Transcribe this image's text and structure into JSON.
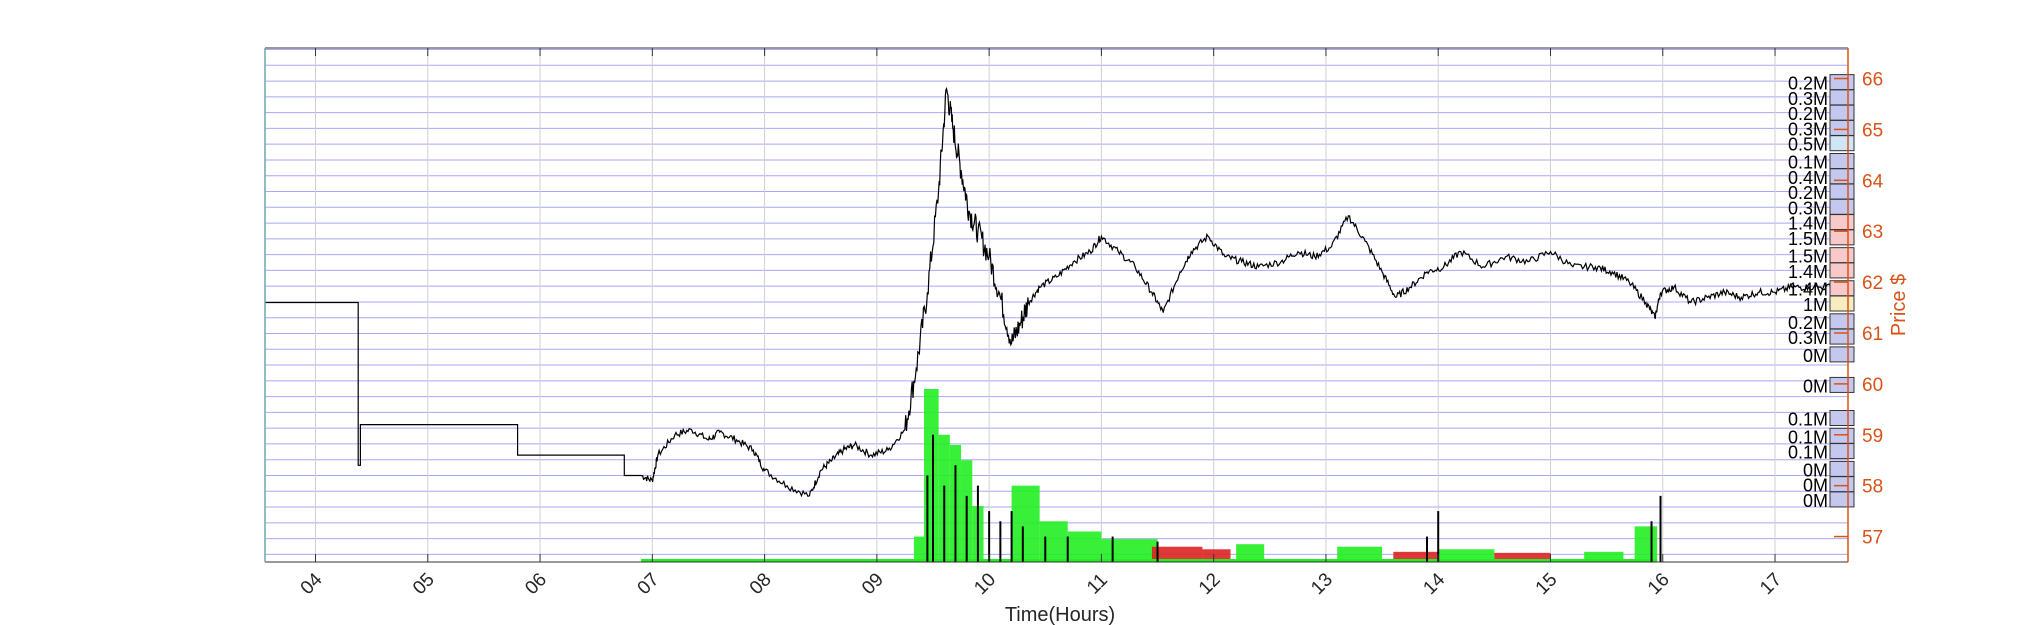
{
  "chart_data": {
    "type": "line",
    "xlabel": "Time(Hours)",
    "ylabel_right": "Price $",
    "xlim": [
      3.55,
      17.65
    ],
    "ylim": [
      56.5,
      66.6
    ],
    "x_ticks": [
      "04",
      "05",
      "06",
      "07",
      "08",
      "09",
      "10",
      "11",
      "12",
      "13",
      "14",
      "15",
      "16",
      "17"
    ],
    "y_ticks": [
      57,
      58,
      59,
      60,
      61,
      62,
      63,
      64,
      65,
      66
    ],
    "grid": true,
    "price_series": {
      "name": "",
      "x": [
        3.55,
        4.38,
        4.38,
        4.4,
        4.4,
        5.8,
        5.8,
        6.75,
        6.75,
        6.9,
        7.0,
        7.05,
        7.2,
        7.35,
        7.5,
        7.6,
        7.75,
        7.9,
        8.0,
        8.2,
        8.4,
        8.5,
        8.6,
        8.7,
        8.8,
        8.95,
        9.1,
        9.25,
        9.35,
        9.45,
        9.55,
        9.62,
        9.68,
        9.75,
        9.82,
        9.9,
        10.0,
        10.1,
        10.2,
        10.28,
        10.35,
        10.45,
        10.6,
        10.75,
        10.9,
        11.0,
        11.15,
        11.3,
        11.45,
        11.55,
        11.7,
        11.8,
        11.95,
        12.1,
        12.25,
        12.4,
        12.6,
        12.75,
        12.9,
        13.05,
        13.2,
        13.35,
        13.5,
        13.62,
        13.75,
        13.9,
        14.05,
        14.2,
        14.4,
        14.6,
        14.8,
        15.0,
        15.2,
        15.4,
        15.55,
        15.7,
        15.85,
        15.93,
        15.98,
        16.1,
        16.25,
        16.4,
        16.55,
        16.7,
        16.85,
        17.0,
        17.15,
        17.3,
        17.55
      ],
      "y": [
        61.6,
        61.6,
        58.4,
        58.4,
        59.2,
        59.2,
        58.6,
        58.6,
        58.2,
        58.2,
        58.1,
        58.6,
        59.0,
        59.1,
        58.9,
        59.05,
        58.9,
        58.7,
        58.3,
        58.0,
        57.8,
        58.3,
        58.5,
        58.7,
        58.8,
        58.6,
        58.7,
        59.1,
        60.3,
        61.8,
        63.8,
        65.8,
        65.0,
        64.2,
        63.4,
        63.0,
        62.5,
        61.7,
        60.8,
        61.2,
        61.6,
        61.9,
        62.1,
        62.4,
        62.6,
        62.9,
        62.6,
        62.3,
        61.8,
        61.4,
        62.2,
        62.6,
        62.9,
        62.5,
        62.4,
        62.3,
        62.4,
        62.6,
        62.5,
        62.7,
        63.3,
        62.8,
        62.2,
        61.7,
        61.9,
        62.2,
        62.3,
        62.6,
        62.3,
        62.5,
        62.4,
        62.6,
        62.3,
        62.3,
        62.2,
        62.0,
        61.6,
        61.3,
        61.8,
        61.9,
        61.6,
        61.7,
        61.8,
        61.7,
        61.8,
        61.8,
        61.9,
        61.9,
        61.9
      ]
    },
    "volume_bars": {
      "green_bins": [
        [
          9.33,
          9.42,
          57.0
        ],
        [
          9.42,
          9.55,
          59.9
        ],
        [
          9.55,
          9.65,
          59.0
        ],
        [
          9.65,
          9.75,
          58.8
        ],
        [
          9.75,
          9.85,
          58.5
        ],
        [
          9.85,
          9.95,
          57.6
        ],
        [
          10.2,
          10.45,
          58.0
        ],
        [
          10.45,
          10.7,
          57.3
        ],
        [
          10.7,
          11.0,
          57.1
        ],
        [
          11.0,
          11.5,
          56.95
        ],
        [
          12.2,
          12.45,
          56.85
        ],
        [
          13.1,
          13.5,
          56.8
        ],
        [
          14.0,
          14.5,
          56.75
        ],
        [
          15.3,
          15.65,
          56.7
        ],
        [
          15.75,
          15.95,
          57.2
        ]
      ],
      "red_bins": [
        [
          11.45,
          11.9,
          56.8
        ],
        [
          11.9,
          12.15,
          56.75
        ],
        [
          13.6,
          14.0,
          56.7
        ],
        [
          14.5,
          15.0,
          56.68
        ]
      ],
      "spikes": [
        [
          9.45,
          58.2
        ],
        [
          9.5,
          59.0
        ],
        [
          9.6,
          58.0
        ],
        [
          9.7,
          58.4
        ],
        [
          9.8,
          57.8
        ],
        [
          9.9,
          58.0
        ],
        [
          10.0,
          57.5
        ],
        [
          10.1,
          57.3
        ],
        [
          10.2,
          57.5
        ],
        [
          10.3,
          57.2
        ],
        [
          10.5,
          57.0
        ],
        [
          10.7,
          57.0
        ],
        [
          11.1,
          57.0
        ],
        [
          11.5,
          56.9
        ],
        [
          13.9,
          57.0
        ],
        [
          14.0,
          57.5
        ],
        [
          15.9,
          57.3
        ],
        [
          15.98,
          57.8
        ]
      ]
    },
    "volume_profile": [
      {
        "price": 65.9,
        "label": "0.2M",
        "fill": "#c5c8ee"
      },
      {
        "price": 65.6,
        "label": "0.3M",
        "fill": "#c5c8ee"
      },
      {
        "price": 65.3,
        "label": "0.2M",
        "fill": "#c5c8ee"
      },
      {
        "price": 65.0,
        "label": "0.3M",
        "fill": "#c5c8ee"
      },
      {
        "price": 64.7,
        "label": "0.5M",
        "fill": "#cfe6f7"
      },
      {
        "price": 64.35,
        "label": "0.1M",
        "fill": "#c5c8ee"
      },
      {
        "price": 64.05,
        "label": "0.4M",
        "fill": "#c5c8ee"
      },
      {
        "price": 63.75,
        "label": "0.2M",
        "fill": "#c5c8ee"
      },
      {
        "price": 63.45,
        "label": "0.3M",
        "fill": "#c5c8ee"
      },
      {
        "price": 63.15,
        "label": "1.4M",
        "fill": "#f7c9c9"
      },
      {
        "price": 62.85,
        "label": "1.5M",
        "fill": "#f7c9c9"
      },
      {
        "price": 62.5,
        "label": "1.5M",
        "fill": "#f7c9c9"
      },
      {
        "price": 62.2,
        "label": "1.4M",
        "fill": "#f7c9c9"
      },
      {
        "price": 61.85,
        "label": "1.4M",
        "fill": "#f7c9c9"
      },
      {
        "price": 61.55,
        "label": "1M",
        "fill": "#f7ecc0"
      },
      {
        "price": 61.2,
        "label": "0.2M",
        "fill": "#c5c8ee"
      },
      {
        "price": 60.9,
        "label": "0.3M",
        "fill": "#c5c8ee"
      },
      {
        "price": 60.55,
        "label": "0M",
        "fill": "#c5c8ee"
      },
      {
        "price": 59.95,
        "label": "0M",
        "fill": "#c5c8ee"
      },
      {
        "price": 59.3,
        "label": "0.1M",
        "fill": "#c5c8ee"
      },
      {
        "price": 58.95,
        "label": "0.1M",
        "fill": "#c5c8ee"
      },
      {
        "price": 58.65,
        "label": "0.1M",
        "fill": "#c5c8ee"
      },
      {
        "price": 58.3,
        "label": "0M",
        "fill": "#c5c8ee"
      },
      {
        "price": 58.0,
        "label": "0M",
        "fill": "#c5c8ee"
      },
      {
        "price": 57.7,
        "label": "0M",
        "fill": "#c5c8ee"
      }
    ],
    "colors": {
      "price_line": "#000000",
      "grid_horizontal": "#8c8cf0",
      "grid_vertical": "#d0d0d0",
      "right_axis": "#d95319",
      "left_axis": "#6ba6b0",
      "volume_up": "#22ee22",
      "volume_down": "#dd2222"
    }
  }
}
